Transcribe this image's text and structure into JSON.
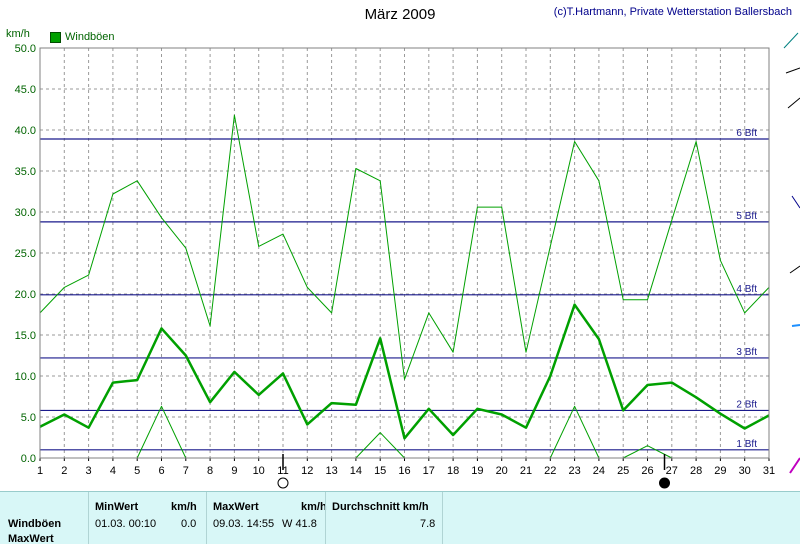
{
  "title": "März 2009",
  "credit": "(c)T.Hartmann, Private Wetterstation Ballersbach",
  "unit_label": "km/h",
  "legend": {
    "label": "Windböen",
    "color": "#00a000"
  },
  "chart_data": {
    "type": "line",
    "title": "März 2009",
    "ylabel": "km/h",
    "xlabel": "",
    "ylim": [
      0,
      50
    ],
    "yticks": [
      "0.0",
      "5.0",
      "10.0",
      "15.0",
      "20.0",
      "25.0",
      "30.0",
      "35.0",
      "40.0",
      "45.0",
      "50.0"
    ],
    "x": [
      1,
      2,
      3,
      4,
      5,
      6,
      7,
      8,
      9,
      10,
      11,
      12,
      13,
      14,
      15,
      16,
      17,
      18,
      19,
      20,
      21,
      22,
      23,
      24,
      25,
      26,
      27,
      28,
      29,
      30,
      31
    ],
    "grid": true,
    "legend_position": "top-left",
    "beaufort_lines": [
      {
        "label": "1 Bft",
        "value": 1
      },
      {
        "label": "2 Bft",
        "value": 5.8
      },
      {
        "label": "3 Bft",
        "value": 12.2
      },
      {
        "label": "4 Bft",
        "value": 19.9
      },
      {
        "label": "5 Bft",
        "value": 28.8
      },
      {
        "label": "6 Bft",
        "value": 38.9
      }
    ],
    "series": [
      {
        "name": "Windböen",
        "role": "max",
        "color": "#00a000",
        "width": 1,
        "values": [
          17.7,
          20.8,
          22.3,
          32.2,
          33.8,
          29.3,
          25.6,
          16.1,
          41.8,
          25.8,
          27.3,
          20.8,
          17.7,
          35.3,
          33.8,
          9.6,
          17.7,
          12.9,
          30.6,
          30.6,
          12.9,
          25.8,
          38.6,
          33.8,
          19.3,
          19.3,
          29.0,
          38.6,
          24.1,
          17.7,
          20.8
        ]
      },
      {
        "role": "mean",
        "color": "#00a000",
        "width": 2.5,
        "values": [
          3.8,
          5.3,
          3.7,
          9.2,
          9.5,
          15.8,
          12.5,
          6.8,
          10.5,
          7.7,
          10.3,
          4.1,
          6.7,
          6.5,
          14.6,
          2.4,
          6.0,
          2.8,
          6.0,
          5.3,
          3.7,
          10.0,
          18.7,
          14.5,
          5.8,
          8.9,
          9.2,
          7.4,
          5.4,
          3.6,
          5.2
        ]
      },
      {
        "role": "min",
        "color": "#00a000",
        "width": 1,
        "values": [
          null,
          null,
          null,
          null,
          0.0,
          6.3,
          0.0,
          null,
          null,
          null,
          null,
          null,
          null,
          0.0,
          3.1,
          0.0,
          null,
          null,
          null,
          null,
          null,
          0.0,
          6.3,
          0.0,
          0.0,
          1.5,
          0.0,
          null,
          null,
          null,
          null
        ]
      }
    ],
    "moon_markers": [
      {
        "day": 11,
        "phase": "full-moon"
      },
      {
        "day": 26.7,
        "phase": "new-moon"
      }
    ]
  },
  "stats": {
    "row_labels": [
      "Windböen",
      "MaxWert"
    ],
    "min_header": "MinWert",
    "min_unit": "km/h",
    "min_datetime": "01.03.  00:10",
    "min_value": "0.0",
    "max_header": "MaxWert",
    "max_unit": "km/h",
    "max_datetime": "09.03.  14:55",
    "max_value": "W 41.8",
    "avg_header": "Durchschnitt km/h",
    "avg_value": "7.8"
  }
}
